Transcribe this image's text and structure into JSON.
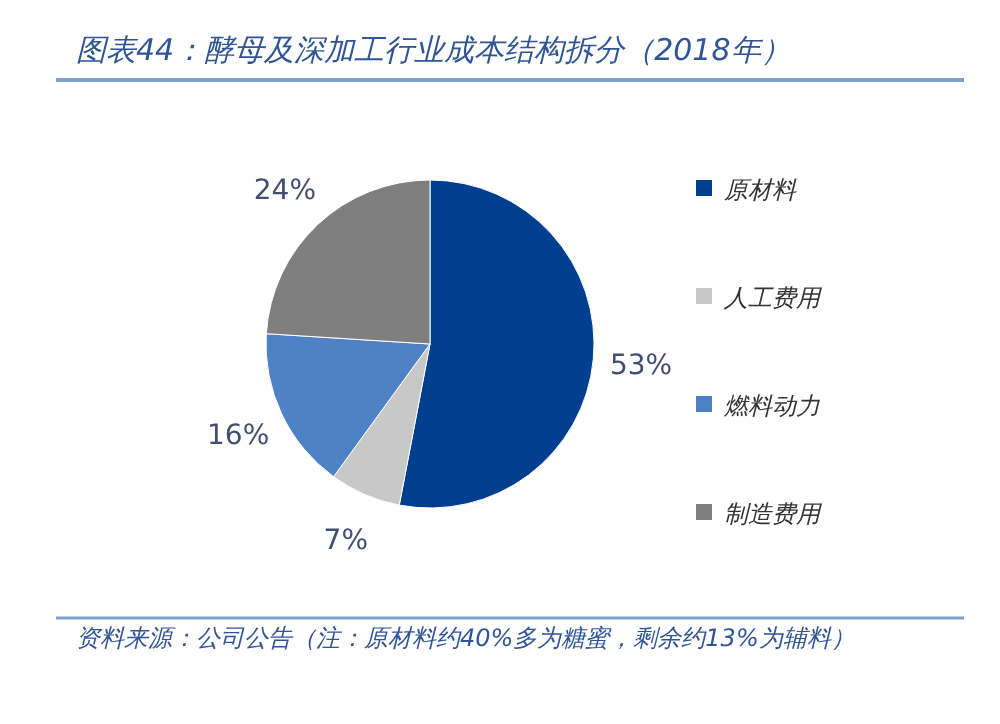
{
  "chart_data": {
    "type": "pie",
    "title": "图表44：酵母及深加工行业成本结构拆分（2018年）",
    "categories": [
      "原材料",
      "人工费用",
      "燃料动力",
      "制造费用"
    ],
    "values": [
      53,
      7,
      16,
      24
    ],
    "colors": [
      "#003f8f",
      "#c8c8c8",
      "#4f81c7",
      "#7f7f7f"
    ],
    "value_labels": [
      "53%",
      "7%",
      "16%",
      "24%"
    ],
    "legend": "right",
    "annotations": [
      "资料来源：公司公告（注：原材料约40%多为糖蜜，剩余约13%为辅料）"
    ]
  }
}
